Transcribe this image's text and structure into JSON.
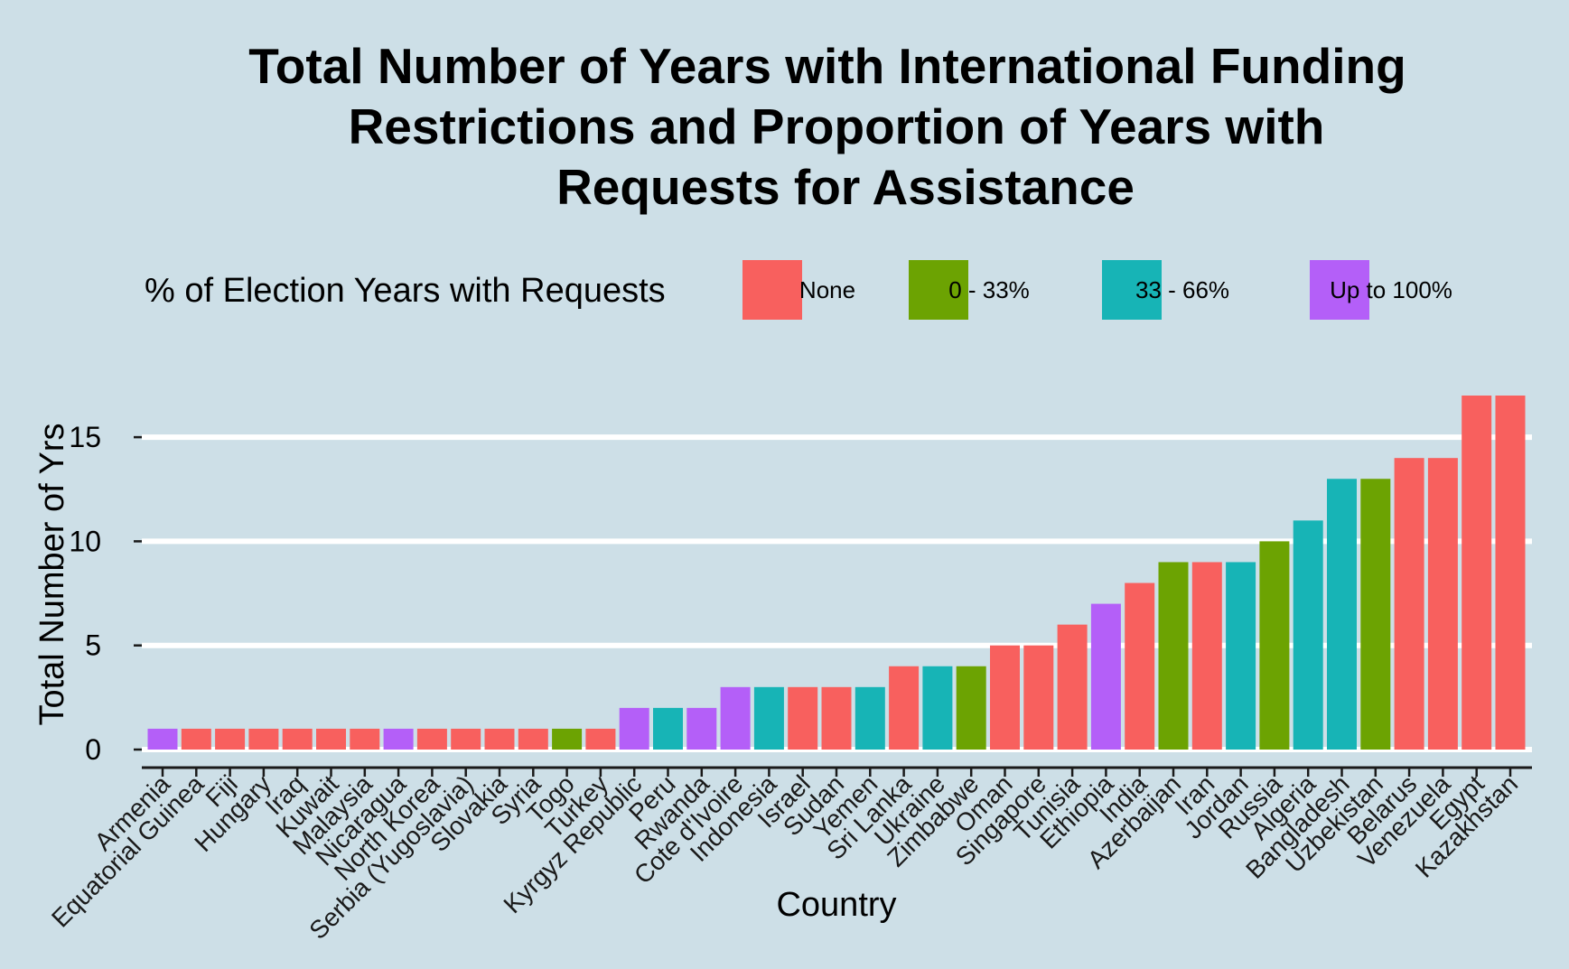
{
  "chart_data": {
    "type": "bar",
    "title_lines": [
      "Total Number of Years with International Funding",
      "Restrictions and Proportion of Years with",
      "Requests for Assistance"
    ],
    "xlabel": "Country",
    "ylabel": "Total Number of Yrs",
    "ylim": [
      0,
      17
    ],
    "y_ticks": [
      0,
      5,
      10,
      15
    ],
    "grid": "horizontal major gridlines",
    "legend": {
      "title": "% of Election Years with Requests",
      "placement": "top",
      "items": [
        {
          "label": "None",
          "color": "#f8605e"
        },
        {
          "label": "0 - 33%",
          "color": "#6ca302"
        },
        {
          "label": "33 - 66%",
          "color": "#17b4b6"
        },
        {
          "label": "Up to 100%",
          "color": "#b45ff8"
        }
      ]
    },
    "categories": [
      "Armenia",
      "Equatorial Guinea",
      "Fiji",
      "Hungary",
      "Iraq",
      "Kuwait",
      "Malaysia",
      "Nicaragua",
      "North Korea",
      "Serbia (Yugoslavia)",
      "Slovakia",
      "Syria",
      "Togo",
      "Turkey",
      "Kyrgyz Republic",
      "Peru",
      "Rwanda",
      "Cote d'Ivoire",
      "Indonesia",
      "Israel",
      "Sudan",
      "Yemen",
      "Sri Lanka",
      "Ukraine",
      "Zimbabwe",
      "Oman",
      "Singapore",
      "Tunisia",
      "Ethiopia",
      "India",
      "Azerbaijan",
      "Iran",
      "Jordan",
      "Russia",
      "Algeria",
      "Bangladesh",
      "Uzbekistan",
      "Belarus",
      "Venezuela",
      "Egypt",
      "Kazakhstan"
    ],
    "values": [
      1,
      1,
      1,
      1,
      1,
      1,
      1,
      1,
      1,
      1,
      1,
      1,
      1,
      1,
      2,
      2,
      2,
      3,
      3,
      3,
      3,
      3,
      4,
      4,
      4,
      5,
      5,
      6,
      7,
      8,
      9,
      9,
      9,
      10,
      11,
      13,
      13,
      14,
      14,
      17,
      17
    ],
    "groups": [
      "Up to 100%",
      "None",
      "None",
      "None",
      "None",
      "None",
      "None",
      "Up to 100%",
      "None",
      "None",
      "None",
      "None",
      "0 - 33%",
      "None",
      "Up to 100%",
      "33 - 66%",
      "Up to 100%",
      "Up to 100%",
      "33 - 66%",
      "None",
      "None",
      "33 - 66%",
      "None",
      "33 - 66%",
      "0 - 33%",
      "None",
      "None",
      "None",
      "Up to 100%",
      "None",
      "0 - 33%",
      "None",
      "33 - 66%",
      "0 - 33%",
      "33 - 66%",
      "33 - 66%",
      "0 - 33%",
      "None",
      "None",
      "None",
      "None"
    ]
  }
}
